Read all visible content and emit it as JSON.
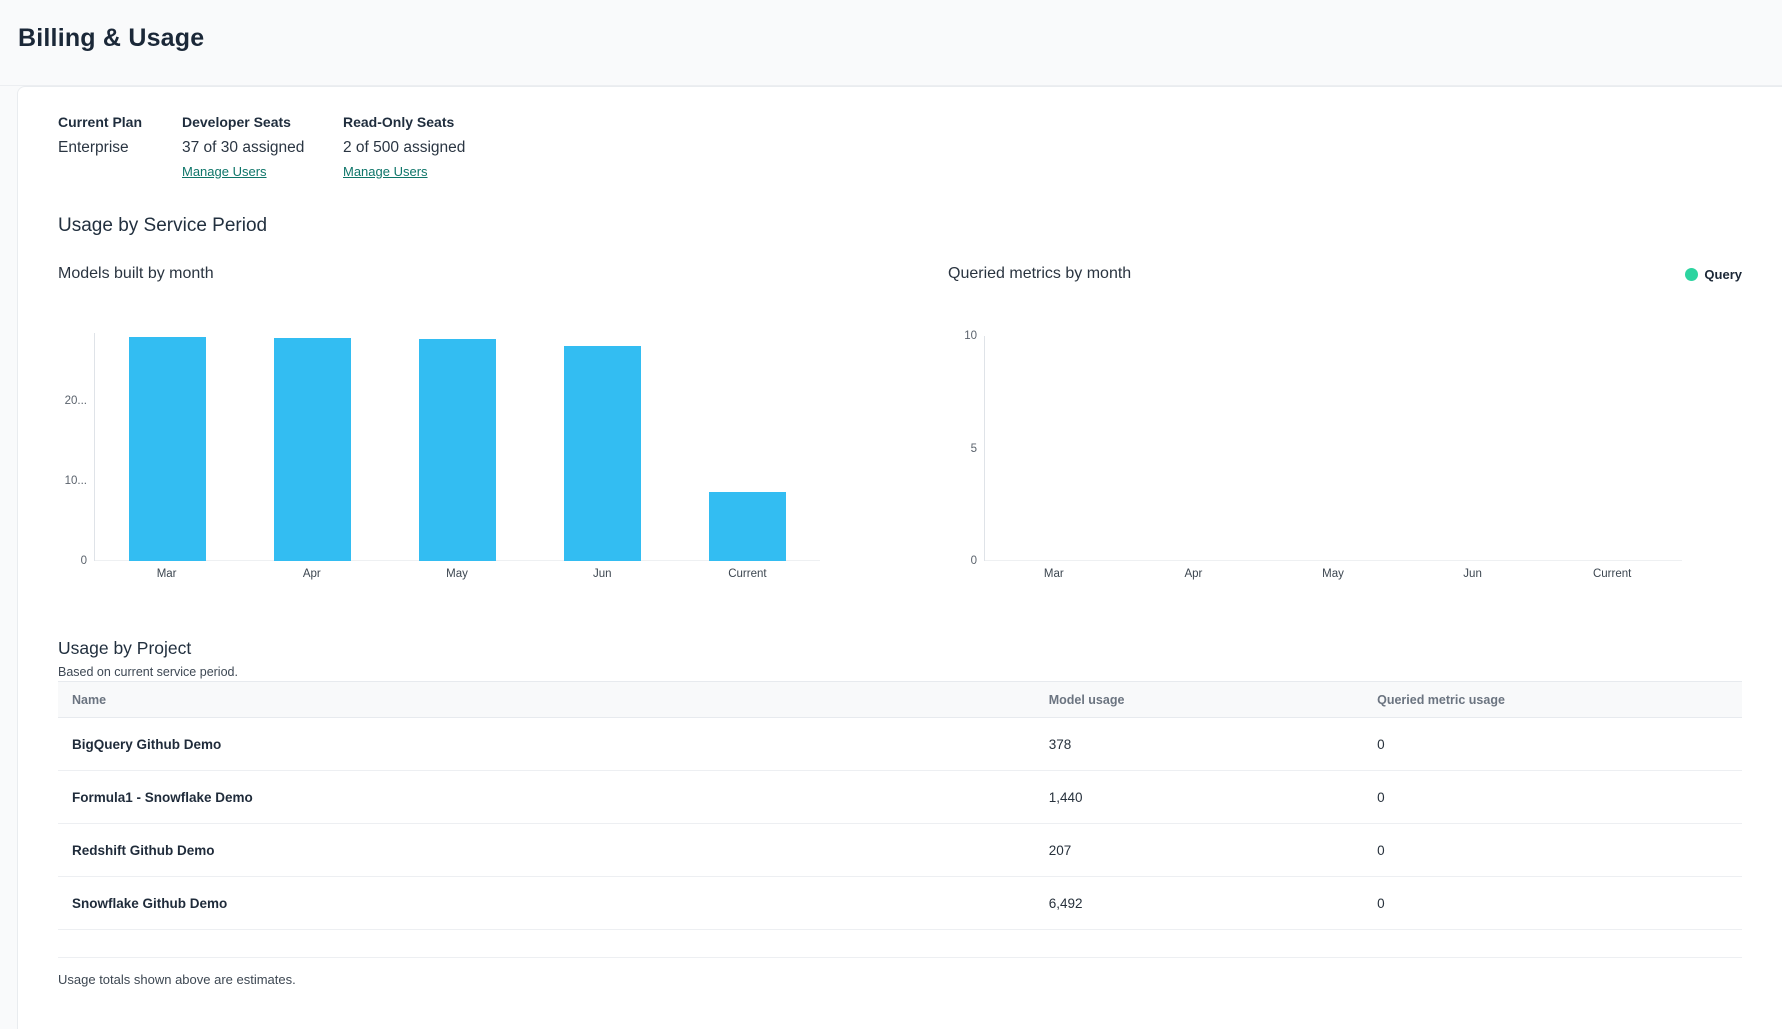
{
  "page": {
    "title": "Billing & Usage"
  },
  "plan_summary": {
    "columns": [
      {
        "label": "Current Plan",
        "value": "Enterprise",
        "link": ""
      },
      {
        "label": "Developer Seats",
        "value": "37 of 30 assigned",
        "link": "Manage Users"
      },
      {
        "label": "Read-Only Seats",
        "value": "2 of 500 assigned",
        "link": "Manage Users"
      }
    ]
  },
  "service_period": {
    "title": "Usage by Service Period"
  },
  "chart_data": [
    {
      "type": "bar",
      "title": "Models built by month",
      "categories": [
        "Mar",
        "Apr",
        "May",
        "Jun",
        "Current"
      ],
      "values": [
        28000,
        27900,
        27800,
        26900,
        8600
      ],
      "ylim": [
        0,
        28500
      ],
      "yticks": [
        {
          "value": 0,
          "label": "0"
        },
        {
          "value": 10000,
          "label": "10..."
        },
        {
          "value": 20000,
          "label": "20..."
        }
      ],
      "bar_color": "#33bdf2",
      "legend": []
    },
    {
      "type": "bar",
      "title": "Queried metrics by month",
      "categories": [
        "Mar",
        "Apr",
        "May",
        "Jun",
        "Current"
      ],
      "values": [
        0,
        0,
        0,
        0,
        0
      ],
      "ylim": [
        0,
        10
      ],
      "yticks": [
        {
          "value": 0,
          "label": "0"
        },
        {
          "value": 5,
          "label": "5"
        },
        {
          "value": 10,
          "label": "10"
        }
      ],
      "bar_color": "#2dd4a0",
      "legend": [
        {
          "label": "Query",
          "color": "#2dd4a0"
        }
      ]
    }
  ],
  "project_usage": {
    "title": "Usage by Project",
    "subtitle": "Based on current service period.",
    "table": {
      "headers": [
        "Name",
        "Model usage",
        "Queried metric usage"
      ],
      "rows": [
        {
          "name": "BigQuery Github Demo",
          "model_usage": "378",
          "queried_metric_usage": "0"
        },
        {
          "name": "Formula1 - Snowflake Demo",
          "model_usage": "1,440",
          "queried_metric_usage": "0"
        },
        {
          "name": "Redshift Github Demo",
          "model_usage": "207",
          "queried_metric_usage": "0"
        },
        {
          "name": "Snowflake Github Demo",
          "model_usage": "6,492",
          "queried_metric_usage": "0"
        }
      ]
    },
    "footnote": "Usage totals shown above are estimates."
  },
  "colors": {
    "link_teal": "#0e7569",
    "bar_blue": "#33bdf2",
    "legend_green": "#2dd4a0"
  }
}
